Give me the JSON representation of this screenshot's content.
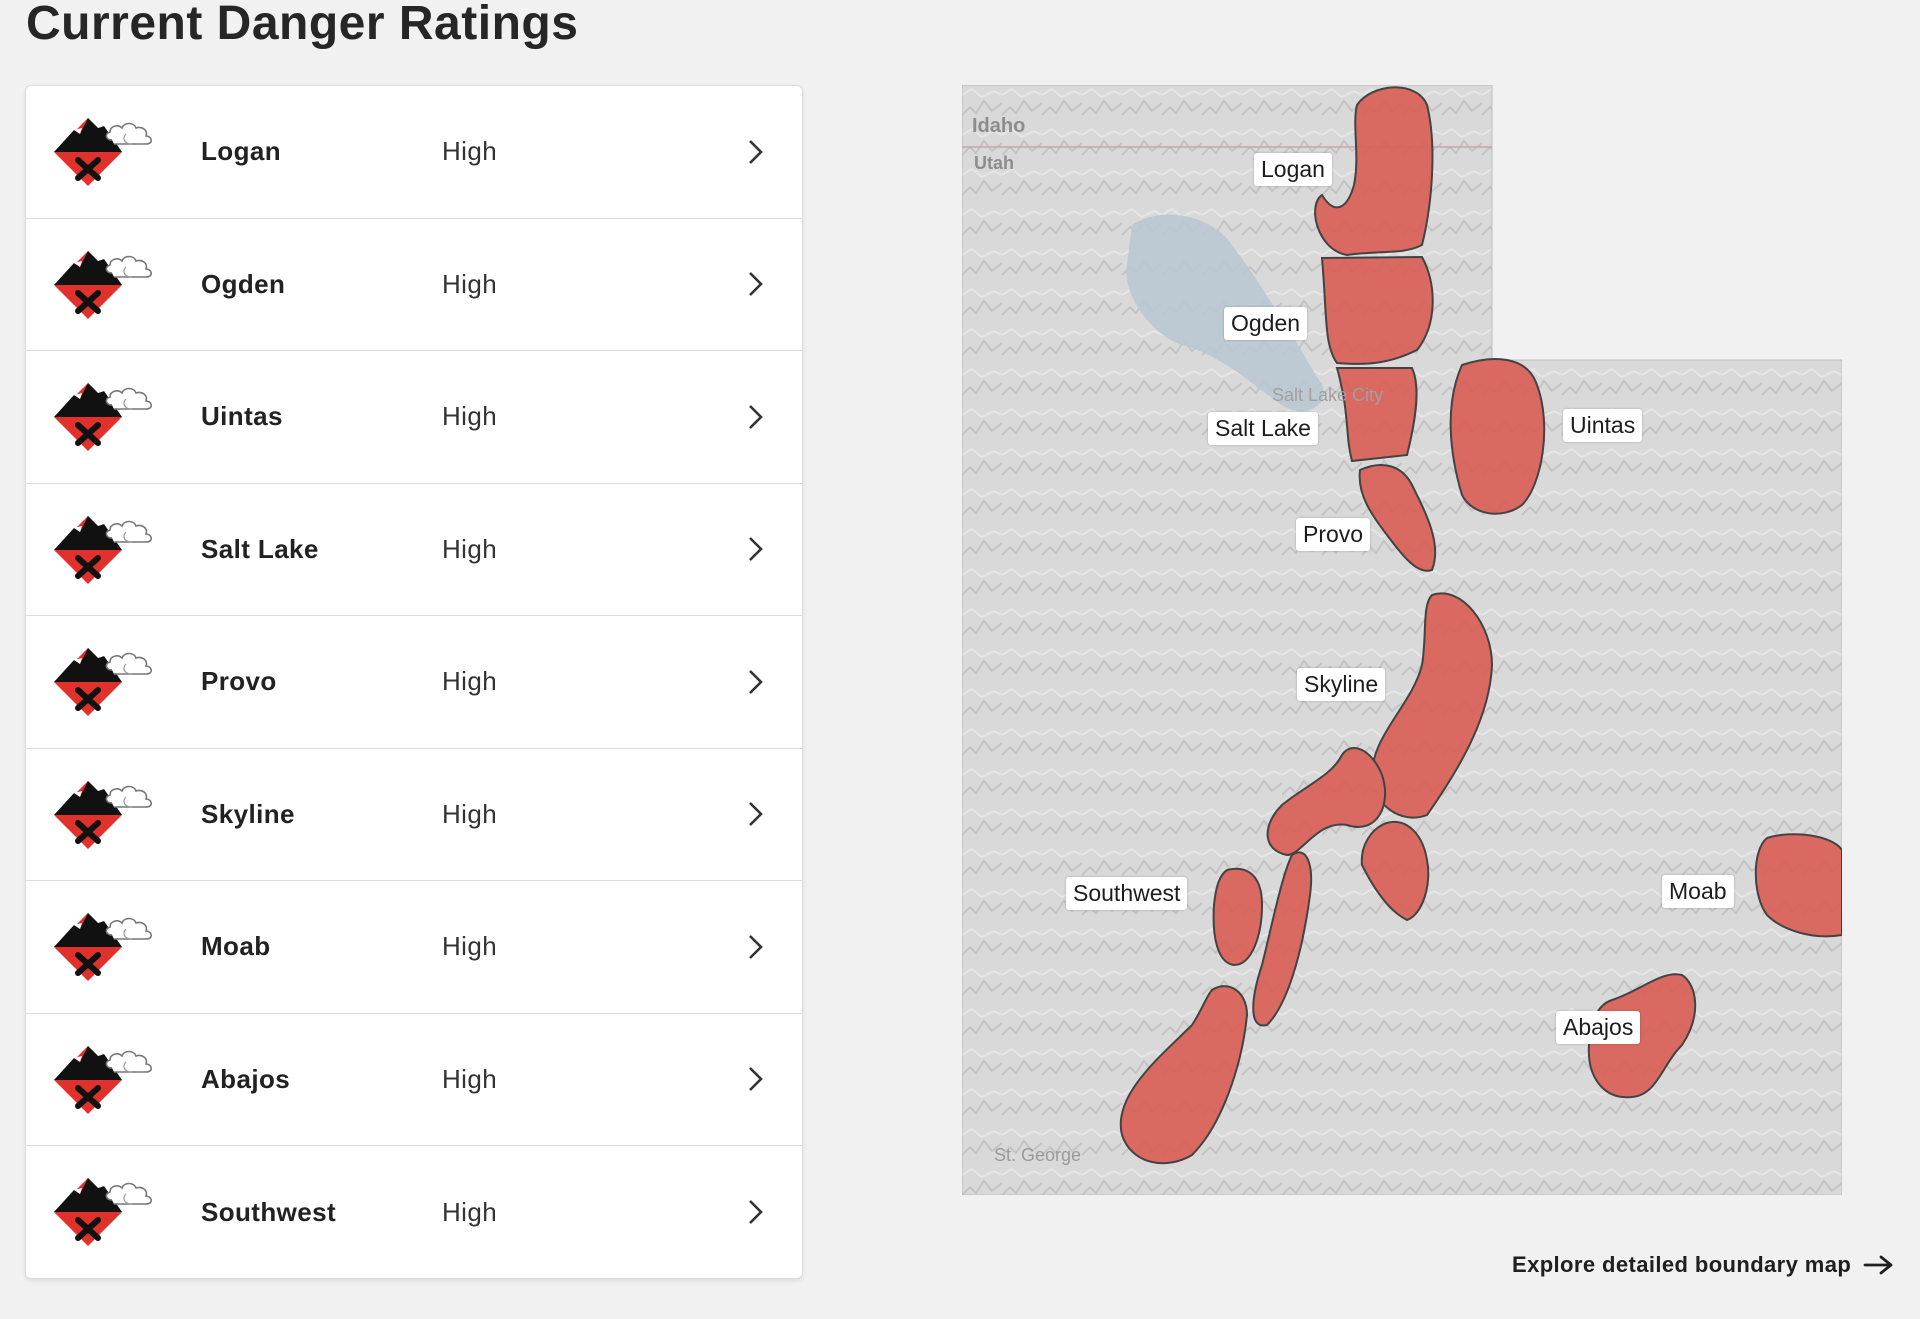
{
  "page": {
    "title": "Current Danger Ratings"
  },
  "zones": [
    {
      "name": "Logan",
      "rating": "High"
    },
    {
      "name": "Ogden",
      "rating": "High"
    },
    {
      "name": "Uintas",
      "rating": "High"
    },
    {
      "name": "Salt Lake",
      "rating": "High"
    },
    {
      "name": "Provo",
      "rating": "High"
    },
    {
      "name": "Skyline",
      "rating": "High"
    },
    {
      "name": "Moab",
      "rating": "High"
    },
    {
      "name": "Abajos",
      "rating": "High"
    },
    {
      "name": "Southwest",
      "rating": "High"
    }
  ],
  "map": {
    "labels": {
      "logan": "Logan",
      "ogden": "Ogden",
      "salt_lake": "Salt Lake",
      "uintas": "Uintas",
      "provo": "Provo",
      "skyline": "Skyline",
      "southwest": "Southwest",
      "moab": "Moab",
      "abajos": "Abajos"
    },
    "basemap": {
      "idaho": "Idaho",
      "utah": "Utah",
      "st_george": "St. George",
      "salt_lake_city": "Salt Lake City"
    },
    "colors": {
      "zone_fill": "#d9645b",
      "zone_stroke": "#3c3c3c",
      "lake": "#b9c8d1"
    }
  },
  "footer": {
    "explore_link": "Explore detailed boundary map"
  },
  "colors": {
    "danger_red": "#e0312c",
    "danger_black": "#111111"
  },
  "icons": {
    "row_icon": "danger-high-icon",
    "row_chevron": "chevron-right-icon",
    "explore_arrow": "arrow-right-icon"
  }
}
